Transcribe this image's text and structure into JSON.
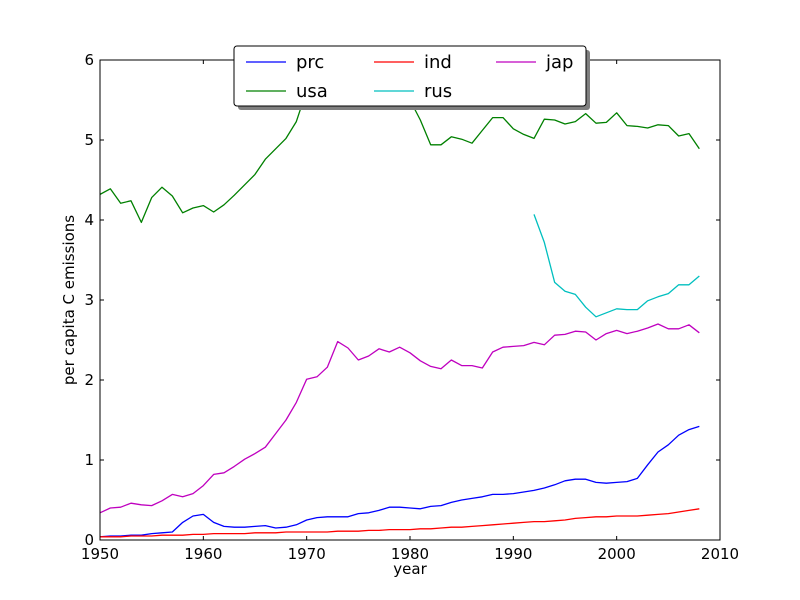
{
  "chart_data": {
    "type": "line",
    "xlabel": "year",
    "ylabel": "per capita C emissions",
    "xlim": [
      1950,
      2010
    ],
    "ylim": [
      0,
      6
    ],
    "x_ticks": [
      "1950",
      "1960",
      "1970",
      "1980",
      "1990",
      "2000",
      "2010"
    ],
    "y_ticks": [
      "0",
      "1",
      "2",
      "3",
      "4",
      "5",
      "6"
    ],
    "grid": false,
    "legend_position": "top-center",
    "series": [
      {
        "name": "prc",
        "color": "#0000ff",
        "x": [
          1950,
          1951,
          1952,
          1953,
          1954,
          1955,
          1956,
          1957,
          1958,
          1959,
          1960,
          1961,
          1962,
          1963,
          1964,
          1965,
          1966,
          1967,
          1968,
          1969,
          1970,
          1971,
          1972,
          1973,
          1974,
          1975,
          1976,
          1977,
          1978,
          1979,
          1980,
          1981,
          1982,
          1983,
          1984,
          1985,
          1986,
          1987,
          1988,
          1989,
          1990,
          1991,
          1992,
          1993,
          1994,
          1995,
          1996,
          1997,
          1998,
          1999,
          2000,
          2001,
          2002,
          2003,
          2004,
          2005,
          2006,
          2007,
          2008
        ],
        "y": [
          0.04,
          0.05,
          0.05,
          0.06,
          0.06,
          0.08,
          0.09,
          0.1,
          0.22,
          0.3,
          0.32,
          0.22,
          0.17,
          0.16,
          0.16,
          0.17,
          0.18,
          0.15,
          0.16,
          0.19,
          0.25,
          0.28,
          0.29,
          0.29,
          0.29,
          0.33,
          0.34,
          0.37,
          0.41,
          0.41,
          0.4,
          0.39,
          0.42,
          0.43,
          0.47,
          0.5,
          0.52,
          0.54,
          0.57,
          0.57,
          0.58,
          0.6,
          0.62,
          0.65,
          0.69,
          0.74,
          0.76,
          0.76,
          0.72,
          0.71,
          0.72,
          0.73,
          0.77,
          0.94,
          1.1,
          1.19,
          1.31,
          1.38,
          1.42
        ]
      },
      {
        "name": "usa",
        "color": "#008000",
        "x": [
          1950,
          1951,
          1952,
          1953,
          1954,
          1955,
          1956,
          1957,
          1958,
          1959,
          1960,
          1961,
          1962,
          1963,
          1964,
          1965,
          1966,
          1967,
          1968,
          1969,
          1970,
          1971,
          1972,
          1973,
          1974,
          1975,
          1976,
          1977,
          1978,
          1979,
          1980,
          1981,
          1982,
          1983,
          1984,
          1985,
          1986,
          1987,
          1988,
          1989,
          1990,
          1991,
          1992,
          1993,
          1994,
          1995,
          1996,
          1997,
          1998,
          1999,
          2000,
          2001,
          2002,
          2003,
          2004,
          2005,
          2006,
          2007,
          2008
        ],
        "y": [
          4.32,
          4.39,
          4.21,
          4.24,
          3.97,
          4.28,
          4.41,
          4.3,
          4.09,
          4.15,
          4.18,
          4.1,
          4.19,
          4.31,
          4.44,
          4.57,
          4.76,
          4.89,
          5.02,
          5.23,
          5.62,
          5.62,
          5.8,
          5.92,
          5.75,
          5.55,
          5.75,
          5.8,
          5.85,
          5.8,
          5.5,
          5.25,
          4.94,
          4.94,
          5.04,
          5.01,
          4.96,
          5.12,
          5.28,
          5.28,
          5.14,
          5.07,
          5.02,
          5.26,
          5.25,
          5.2,
          5.23,
          5.33,
          5.21,
          5.22,
          5.34,
          5.18,
          5.17,
          5.15,
          5.19,
          5.18,
          5.05,
          5.08,
          4.89
        ]
      },
      {
        "name": "ind",
        "color": "#ff0000",
        "x": [
          1950,
          1951,
          1952,
          1953,
          1954,
          1955,
          1956,
          1957,
          1958,
          1959,
          1960,
          1961,
          1962,
          1963,
          1964,
          1965,
          1966,
          1967,
          1968,
          1969,
          1970,
          1971,
          1972,
          1973,
          1974,
          1975,
          1976,
          1977,
          1978,
          1979,
          1980,
          1981,
          1982,
          1983,
          1984,
          1985,
          1986,
          1987,
          1988,
          1989,
          1990,
          1991,
          1992,
          1993,
          1994,
          1995,
          1996,
          1997,
          1998,
          1999,
          2000,
          2001,
          2002,
          2003,
          2004,
          2005,
          2006,
          2007,
          2008
        ],
        "y": [
          0.04,
          0.04,
          0.04,
          0.05,
          0.05,
          0.05,
          0.06,
          0.06,
          0.06,
          0.07,
          0.07,
          0.08,
          0.08,
          0.08,
          0.08,
          0.09,
          0.09,
          0.09,
          0.1,
          0.1,
          0.1,
          0.1,
          0.1,
          0.11,
          0.11,
          0.11,
          0.12,
          0.12,
          0.13,
          0.13,
          0.13,
          0.14,
          0.14,
          0.15,
          0.16,
          0.16,
          0.17,
          0.18,
          0.19,
          0.2,
          0.21,
          0.22,
          0.23,
          0.23,
          0.24,
          0.25,
          0.27,
          0.28,
          0.29,
          0.29,
          0.3,
          0.3,
          0.3,
          0.31,
          0.32,
          0.33,
          0.35,
          0.37,
          0.39
        ]
      },
      {
        "name": "rus",
        "color": "#00bfbf",
        "x": [
          1992,
          1993,
          1994,
          1995,
          1996,
          1997,
          1998,
          1999,
          2000,
          2001,
          2002,
          2003,
          2004,
          2005,
          2006,
          2007,
          2008
        ],
        "y": [
          4.07,
          3.72,
          3.22,
          3.11,
          3.07,
          2.91,
          2.79,
          2.84,
          2.89,
          2.88,
          2.88,
          2.99,
          3.04,
          3.08,
          3.19,
          3.19,
          3.3
        ]
      },
      {
        "name": "jap",
        "color": "#bf00bf",
        "x": [
          1950,
          1951,
          1952,
          1953,
          1954,
          1955,
          1956,
          1957,
          1958,
          1959,
          1960,
          1961,
          1962,
          1963,
          1964,
          1965,
          1966,
          1967,
          1968,
          1969,
          1970,
          1971,
          1972,
          1973,
          1974,
          1975,
          1976,
          1977,
          1978,
          1979,
          1980,
          1981,
          1982,
          1983,
          1984,
          1985,
          1986,
          1987,
          1988,
          1989,
          1990,
          1991,
          1992,
          1993,
          1994,
          1995,
          1996,
          1997,
          1998,
          1999,
          2000,
          2001,
          2002,
          2003,
          2004,
          2005,
          2006,
          2007,
          2008
        ],
        "y": [
          0.34,
          0.4,
          0.41,
          0.46,
          0.44,
          0.43,
          0.49,
          0.57,
          0.54,
          0.58,
          0.68,
          0.82,
          0.84,
          0.92,
          1.01,
          1.08,
          1.16,
          1.33,
          1.5,
          1.72,
          2.01,
          2.04,
          2.16,
          2.48,
          2.4,
          2.25,
          2.3,
          2.39,
          2.35,
          2.41,
          2.34,
          2.24,
          2.17,
          2.14,
          2.25,
          2.18,
          2.18,
          2.15,
          2.35,
          2.41,
          2.42,
          2.43,
          2.47,
          2.44,
          2.56,
          2.57,
          2.61,
          2.6,
          2.5,
          2.58,
          2.62,
          2.58,
          2.61,
          2.65,
          2.7,
          2.64,
          2.64,
          2.69,
          2.59
        ]
      }
    ]
  }
}
